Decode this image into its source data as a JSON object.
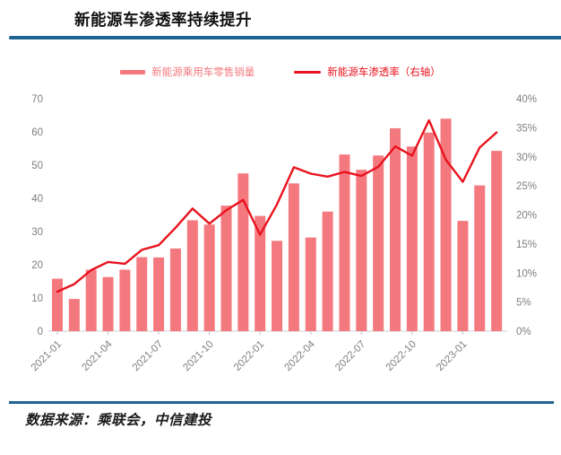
{
  "header": {
    "title": "新能源车渗透率持续提升"
  },
  "footer": {
    "source_note": "数据来源：乘联会，中信建投"
  },
  "colors": {
    "accent_rule": "#1F6392",
    "bar": "#F4797E",
    "line": "#E8131E",
    "axis_text": "#7F7F7F",
    "baseline": "#D9D9D9",
    "tick": "#BFBFBF"
  },
  "chart_data": {
    "type": "bar",
    "subtype": "combo-bar-line-dual-axis",
    "title": "新能源车渗透率持续提升",
    "grid": false,
    "legend_position": "top",
    "categories": [
      "2021-01",
      "2021-02",
      "2021-03",
      "2021-04",
      "2021-05",
      "2021-06",
      "2021-07",
      "2021-08",
      "2021-09",
      "2021-10",
      "2021-11",
      "2021-12",
      "2022-01",
      "2022-02",
      "2022-03",
      "2022-04",
      "2022-05",
      "2022-06",
      "2022-07",
      "2022-08",
      "2022-09",
      "2022-10",
      "2022-11",
      "2022-12",
      "2023-01",
      "2023-02",
      "2023-03"
    ],
    "x_tick_labels": [
      "2021-01",
      "2021-04",
      "2021-07",
      "2021-10",
      "2022-01",
      "2022-04",
      "2022-07",
      "2022-10",
      "2023-01"
    ],
    "x_label_every": 3,
    "series": [
      {
        "name": "新能源乘用车零售销量",
        "type": "bar",
        "axis": "left",
        "color": "#F4797E",
        "values": [
          15.8,
          9.7,
          18.5,
          16.3,
          18.5,
          22.3,
          22.2,
          24.9,
          33.4,
          32.1,
          37.8,
          47.5,
          34.7,
          27.2,
          44.5,
          28.2,
          36.0,
          53.2,
          48.6,
          52.9,
          61.1,
          55.6,
          59.8,
          64.0,
          33.2,
          43.9,
          54.3
        ]
      },
      {
        "name": "新能源车渗透率（右轴）",
        "type": "line",
        "axis": "right",
        "color": "#E8131E",
        "unit": "%",
        "values": [
          6.8,
          8.1,
          10.5,
          11.9,
          11.6,
          14.0,
          14.8,
          17.8,
          21.1,
          18.5,
          20.8,
          22.6,
          16.6,
          21.8,
          28.2,
          27.1,
          26.6,
          27.4,
          26.7,
          28.3,
          31.8,
          30.2,
          36.3,
          29.5,
          25.7,
          31.6,
          34.2
        ]
      }
    ],
    "left_axis": {
      "min": 0,
      "max": 70,
      "step": 10,
      "ticks": [
        "0",
        "10",
        "20",
        "30",
        "40",
        "50",
        "60",
        "70"
      ]
    },
    "right_axis": {
      "min": 0,
      "max": 40,
      "step": 5,
      "ticks": [
        "0%",
        "5%",
        "10%",
        "15%",
        "20%",
        "25%",
        "30%",
        "35%",
        "40%"
      ]
    }
  }
}
